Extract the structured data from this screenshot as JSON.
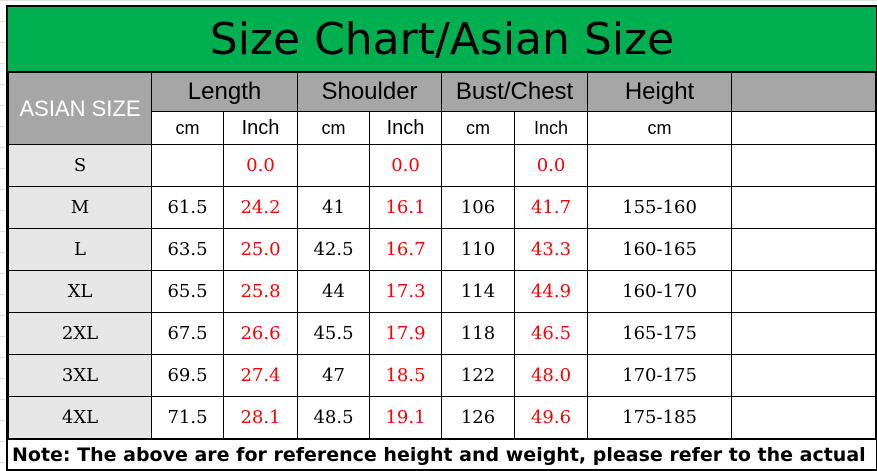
{
  "title": "Size Chart/Asian Size",
  "header": {
    "size_label": "ASIAN SIZE",
    "groups": [
      "Length",
      "Shoulder",
      "Bust/Chest",
      "Height"
    ],
    "units": [
      "cm",
      "Inch",
      "cm",
      "Inch",
      "cm",
      "Inch",
      "cm"
    ]
  },
  "rows": [
    {
      "size": "S",
      "length_cm": "",
      "length_in": "0.0",
      "shoulder_cm": "",
      "shoulder_in": "0.0",
      "bust_cm": "",
      "bust_in": "0.0",
      "height_cm": ""
    },
    {
      "size": "M",
      "length_cm": "61.5",
      "length_in": "24.2",
      "shoulder_cm": "41",
      "shoulder_in": "16.1",
      "bust_cm": "106",
      "bust_in": "41.7",
      "height_cm": "155-160"
    },
    {
      "size": "L",
      "length_cm": "63.5",
      "length_in": "25.0",
      "shoulder_cm": "42.5",
      "shoulder_in": "16.7",
      "bust_cm": "110",
      "bust_in": "43.3",
      "height_cm": "160-165"
    },
    {
      "size": "XL",
      "length_cm": "65.5",
      "length_in": "25.8",
      "shoulder_cm": "44",
      "shoulder_in": "17.3",
      "bust_cm": "114",
      "bust_in": "44.9",
      "height_cm": "160-170"
    },
    {
      "size": "2XL",
      "length_cm": "67.5",
      "length_in": "26.6",
      "shoulder_cm": "45.5",
      "shoulder_in": "17.9",
      "bust_cm": "118",
      "bust_in": "46.5",
      "height_cm": "165-175"
    },
    {
      "size": "3XL",
      "length_cm": "69.5",
      "length_in": "27.4",
      "shoulder_cm": "47",
      "shoulder_in": "18.5",
      "bust_cm": "122",
      "bust_in": "48.0",
      "height_cm": "170-175"
    },
    {
      "size": "4XL",
      "length_cm": "71.5",
      "length_in": "28.1",
      "shoulder_cm": "48.5",
      "shoulder_in": "19.1",
      "bust_cm": "126",
      "bust_in": "49.6",
      "height_cm": "175-185"
    }
  ],
  "note": "Note: The above are for reference height and weight, please refer to the actual",
  "colors": {
    "title_bg": "#00b050",
    "header_bg": "#a6a6a6",
    "inch_text": "#ff0000"
  }
}
